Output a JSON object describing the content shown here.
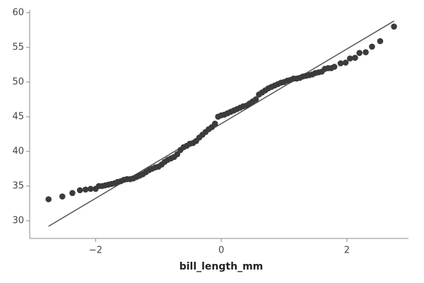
{
  "chart_data": {
    "type": "scatter",
    "x_label": "bill_length_mm",
    "xlim": [
      -3.05,
      2.98
    ],
    "ylim": [
      27.45,
      60.3
    ],
    "xticks": [
      {
        "value": -2,
        "label": "−2"
      },
      0,
      2
    ],
    "yticks": [
      30,
      35,
      40,
      45,
      50,
      55,
      60
    ],
    "points": {
      "color": "#3b3b3b",
      "x": [
        -2.75,
        -2.53,
        -2.37,
        -2.25,
        -2.16,
        -2.08,
        -2.0,
        -1.95,
        -1.9,
        -1.85,
        -1.8,
        -1.75,
        -1.7,
        -1.65,
        -1.6,
        -1.55,
        -1.5,
        -1.45,
        -1.4,
        -1.35,
        -1.3,
        -1.25,
        -1.2,
        -1.15,
        -1.1,
        -1.05,
        -1.0,
        -0.95,
        -0.9,
        -0.85,
        -0.8,
        -0.75,
        -0.7,
        -0.65,
        -0.6,
        -0.55,
        -0.5,
        -0.45,
        -0.4,
        -0.35,
        -0.3,
        -0.25,
        -0.2,
        -0.15,
        -0.1,
        -0.05,
        0.0,
        0.05,
        0.1,
        0.15,
        0.2,
        0.25,
        0.3,
        0.35,
        0.4,
        0.45,
        0.5,
        0.55,
        0.6,
        0.65,
        0.7,
        0.75,
        0.8,
        0.85,
        0.9,
        0.95,
        1.0,
        1.05,
        1.1,
        1.15,
        1.2,
        1.25,
        1.3,
        1.35,
        1.4,
        1.45,
        1.5,
        1.55,
        1.6,
        1.65,
        1.7,
        1.75,
        1.8,
        1.9,
        1.98,
        2.05,
        2.13,
        2.2,
        2.3,
        2.4,
        2.53,
        2.75
      ],
      "y": [
        33.1,
        33.5,
        34.0,
        34.4,
        34.5,
        34.6,
        34.6,
        35.0,
        35.0,
        35.1,
        35.2,
        35.3,
        35.4,
        35.6,
        35.7,
        35.9,
        36.0,
        36.0,
        36.1,
        36.3,
        36.5,
        36.7,
        37.0,
        37.3,
        37.5,
        37.7,
        37.8,
        38.1,
        38.5,
        38.8,
        39.0,
        39.2,
        39.6,
        40.2,
        40.6,
        40.8,
        41.1,
        41.2,
        41.5,
        42.0,
        42.4,
        42.8,
        43.2,
        43.5,
        44.0,
        45.0,
        45.2,
        45.3,
        45.5,
        45.7,
        45.9,
        46.1,
        46.3,
        46.5,
        46.6,
        46.9,
        47.2,
        47.5,
        48.2,
        48.5,
        48.8,
        49.1,
        49.3,
        49.5,
        49.7,
        49.9,
        50.0,
        50.2,
        50.3,
        50.5,
        50.5,
        50.6,
        50.8,
        50.9,
        51.0,
        51.1,
        51.3,
        51.4,
        51.5,
        51.9,
        52.0,
        52.0,
        52.2,
        52.7,
        52.8,
        53.4,
        53.5,
        54.2,
        54.3,
        55.1,
        55.9,
        58.0
      ]
    },
    "reference_line": {
      "color": "#555555",
      "x": [
        -2.75,
        2.75
      ],
      "y": [
        29.2,
        58.8
      ]
    }
  }
}
